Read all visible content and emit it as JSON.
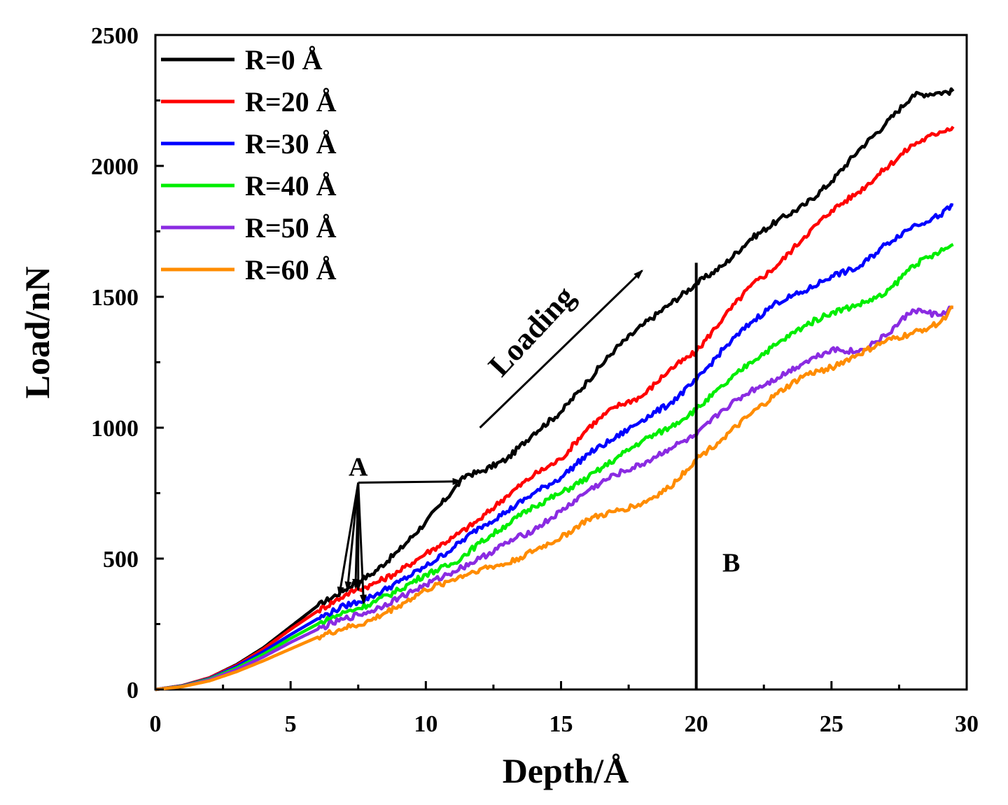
{
  "chart_data": {
    "type": "line",
    "title": "",
    "xlabel": "Depth/Å",
    "ylabel": "Load/nN",
    "xlim": [
      0,
      30
    ],
    "ylim": [
      0,
      2500
    ],
    "xticks": [
      0,
      5,
      10,
      15,
      20,
      25,
      30
    ],
    "yticks": [
      0,
      500,
      1000,
      1500,
      2000,
      2500
    ],
    "xtick_labels": [
      "0",
      "5",
      "10",
      "15",
      "20",
      "25",
      "30"
    ],
    "ytick_labels": [
      "0",
      "500",
      "1000",
      "1500",
      "2000",
      "2500"
    ],
    "legend_position": "top-left",
    "series": [
      {
        "name": "R=0 Å",
        "color": "#000000",
        "x": [
          0,
          1,
          2,
          3,
          4,
          5,
          6,
          7,
          7.4,
          8,
          9,
          10,
          11,
          11.5,
          12,
          13,
          14,
          15,
          16,
          17,
          18,
          19,
          20,
          21,
          22,
          23,
          24,
          25,
          26,
          27,
          28,
          29,
          29.5
        ],
        "y": [
          0,
          15,
          45,
          95,
          160,
          240,
          320,
          380,
          410,
          440,
          530,
          640,
          760,
          820,
          830,
          880,
          980,
          1060,
          1180,
          1300,
          1390,
          1470,
          1550,
          1620,
          1720,
          1790,
          1850,
          1940,
          2060,
          2160,
          2270,
          2280,
          2285
        ]
      },
      {
        "name": "R=20 Å",
        "color": "#ff0000",
        "x": [
          0,
          1,
          2,
          3,
          4,
          5,
          6,
          7,
          7.4,
          8,
          9,
          10,
          11,
          12,
          13,
          14,
          15,
          16,
          17,
          18,
          19,
          20,
          21,
          22,
          23,
          24,
          25,
          26,
          27,
          28,
          29,
          29.5
        ],
        "y": [
          0,
          15,
          45,
          92,
          155,
          230,
          300,
          360,
          380,
          400,
          450,
          520,
          580,
          650,
          740,
          820,
          880,
          1000,
          1080,
          1120,
          1220,
          1290,
          1420,
          1540,
          1620,
          1730,
          1830,
          1900,
          1990,
          2080,
          2130,
          2150
        ]
      },
      {
        "name": "R=30 Å",
        "color": "#0000ff",
        "x": [
          0,
          1,
          2,
          3,
          4,
          5,
          6,
          7,
          7.5,
          8,
          9,
          10,
          11,
          12,
          13,
          14,
          15,
          16,
          17,
          18,
          19,
          20,
          21,
          22,
          23,
          24,
          25,
          26,
          27,
          28,
          29,
          29.5
        ],
        "y": [
          0,
          14,
          42,
          88,
          145,
          210,
          270,
          320,
          335,
          355,
          410,
          470,
          540,
          620,
          680,
          750,
          810,
          900,
          960,
          1030,
          1090,
          1180,
          1300,
          1400,
          1480,
          1520,
          1580,
          1610,
          1700,
          1770,
          1810,
          1850
        ]
      },
      {
        "name": "R=40 Å",
        "color": "#00ee00",
        "x": [
          0,
          1,
          2,
          3,
          4,
          5,
          6,
          7,
          7.5,
          8,
          9,
          10,
          11,
          12,
          13,
          14,
          15,
          16,
          17,
          18,
          19,
          20,
          21,
          22,
          23,
          24,
          25,
          26,
          27,
          28,
          29,
          29.5
        ],
        "y": [
          0,
          13,
          40,
          82,
          135,
          195,
          250,
          295,
          310,
          330,
          380,
          440,
          480,
          560,
          630,
          700,
          750,
          810,
          880,
          950,
          1000,
          1070,
          1160,
          1250,
          1320,
          1390,
          1440,
          1470,
          1510,
          1620,
          1670,
          1700
        ]
      },
      {
        "name": "R=50 Å",
        "color": "#8a2be2",
        "x": [
          0,
          1,
          2,
          3,
          4,
          5,
          6,
          7,
          7.5,
          8,
          9,
          10,
          11,
          12,
          13,
          14,
          15,
          16,
          17,
          18,
          19,
          20,
          21,
          22,
          23,
          24,
          25,
          26,
          27,
          28,
          28.5,
          29,
          29.5
        ],
        "y": [
          0,
          12,
          37,
          76,
          125,
          180,
          230,
          270,
          285,
          300,
          350,
          400,
          450,
          500,
          560,
          610,
          680,
          760,
          820,
          860,
          920,
          970,
          1070,
          1140,
          1190,
          1250,
          1300,
          1290,
          1350,
          1450,
          1440,
          1430,
          1460
        ]
      },
      {
        "name": "R=60 Å",
        "color": "#ff8c00",
        "x": [
          0,
          1,
          2,
          3,
          4,
          5,
          6,
          7,
          7.5,
          8,
          9,
          10,
          11,
          12,
          13,
          14,
          15,
          16,
          17,
          18,
          19,
          20,
          21,
          22,
          23,
          24,
          25,
          26,
          27,
          28,
          29,
          29.5
        ],
        "y": [
          0,
          11,
          33,
          68,
          110,
          155,
          200,
          235,
          245,
          265,
          320,
          380,
          420,
          460,
          480,
          530,
          580,
          650,
          680,
          710,
          770,
          880,
          960,
          1050,
          1130,
          1200,
          1230,
          1280,
          1330,
          1360,
          1400,
          1460
        ]
      }
    ],
    "annotations": [
      {
        "name": "label-A",
        "text": "A"
      },
      {
        "name": "label-B",
        "text": "B"
      },
      {
        "name": "label-loading",
        "text": "Loading"
      }
    ],
    "reference_line": {
      "x": 20,
      "y_range": [
        0,
        1630
      ]
    },
    "loading_arrow": {
      "from": [
        12,
        1000
      ],
      "to": [
        18,
        1600
      ]
    },
    "a_arrow": {
      "origin": [
        7.5,
        790
      ],
      "right_target": [
        11.3,
        795
      ],
      "down_targets": [
        [
          6.8,
          360
        ],
        [
          7.1,
          380
        ],
        [
          7.4,
          390
        ],
        [
          7.5,
          380
        ],
        [
          7.7,
          330
        ]
      ]
    }
  }
}
